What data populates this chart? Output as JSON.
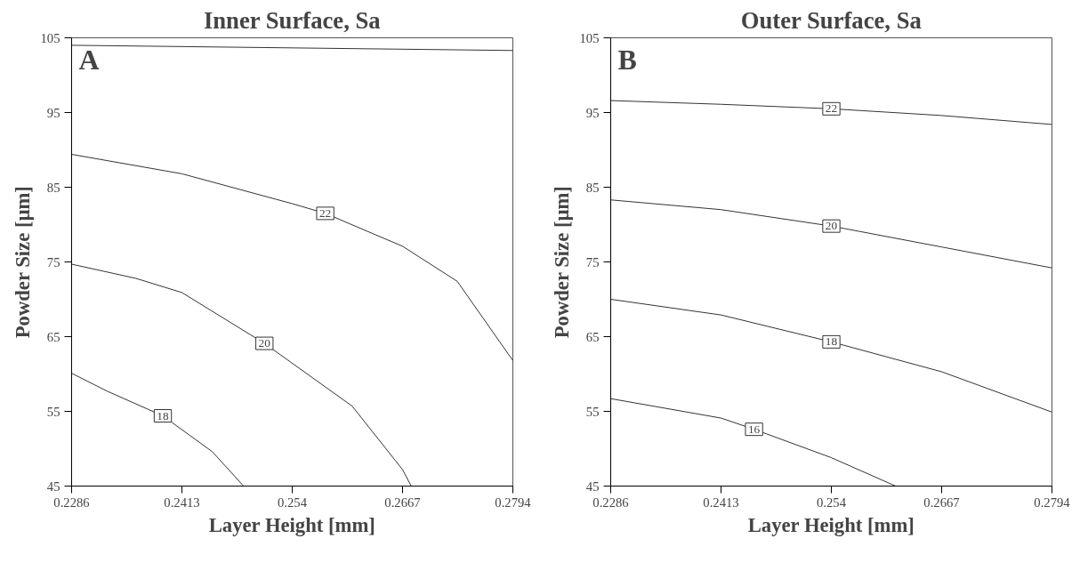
{
  "chart_data": [
    {
      "type": "line",
      "title": "Inner Surface, Sa",
      "xlabel": "Layer Height [mm]",
      "ylabel": "Powder Size [µm]",
      "annotations": [
        "A"
      ],
      "xlim": [
        0.2286,
        0.2794
      ],
      "ylim": [
        45,
        105
      ],
      "xticks": [
        0.2286,
        0.2413,
        0.254,
        0.2667,
        0.2794
      ],
      "yticks": [
        45,
        55,
        65,
        75,
        85,
        95,
        105
      ],
      "grid": false,
      "series": [
        {
          "color": "#333333",
          "x": [
            0.2286,
            0.2794
          ],
          "values": [
            104,
            103.3
          ]
        },
        {
          "name": "22",
          "color": "#333333",
          "x": [
            0.2286,
            0.2413,
            0.254,
            0.2578,
            0.2667,
            0.273,
            0.2794
          ],
          "values": [
            89.4,
            86.8,
            82.8,
            81.5,
            77.1,
            72.4,
            61.8
          ]
        },
        {
          "name": "20",
          "color": "#333333",
          "x": [
            0.2286,
            0.236,
            0.2413,
            0.2508,
            0.2609,
            0.2667,
            0.2677
          ],
          "values": [
            74.7,
            72.8,
            70.9,
            64.1,
            55.7,
            47.2,
            45
          ]
        },
        {
          "name": "18",
          "color": "#333333",
          "x": [
            0.2286,
            0.2327,
            0.2391,
            0.2448,
            0.2484
          ],
          "values": [
            60.1,
            57.7,
            54.4,
            49.6,
            45
          ]
        }
      ]
    },
    {
      "type": "line",
      "title": "Outer Surface, Sa",
      "xlabel": "Layer Height [mm]",
      "ylabel": "Powder Size [µm]",
      "annotations": [
        "B"
      ],
      "xlim": [
        0.2286,
        0.2794
      ],
      "ylim": [
        45,
        105
      ],
      "xticks": [
        0.2286,
        0.2413,
        0.254,
        0.2667,
        0.2794
      ],
      "yticks": [
        45,
        55,
        65,
        75,
        85,
        95,
        105
      ],
      "grid": false,
      "series": [
        {
          "name": "22",
          "color": "#333333",
          "x": [
            0.2286,
            0.2413,
            0.254,
            0.2667,
            0.2794
          ],
          "values": [
            96.6,
            96.1,
            95.5,
            94.6,
            93.4
          ]
        },
        {
          "name": "20",
          "color": "#333333",
          "x": [
            0.2286,
            0.2413,
            0.254,
            0.2667,
            0.2794
          ],
          "values": [
            83.3,
            82.0,
            79.8,
            77.0,
            74.2
          ]
        },
        {
          "name": "18",
          "color": "#333333",
          "x": [
            0.2286,
            0.2413,
            0.254,
            0.2667,
            0.2794
          ],
          "values": [
            70.0,
            67.9,
            64.3,
            60.3,
            54.9
          ]
        },
        {
          "name": "16",
          "color": "#333333",
          "x": [
            0.2286,
            0.2413,
            0.2451,
            0.254,
            0.2614
          ],
          "values": [
            56.7,
            54.1,
            52.6,
            48.8,
            45
          ]
        }
      ]
    }
  ]
}
